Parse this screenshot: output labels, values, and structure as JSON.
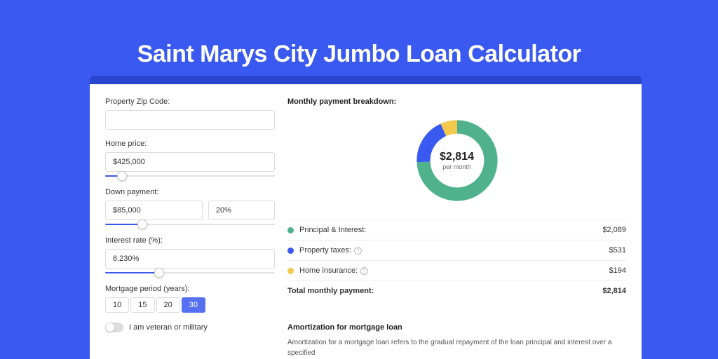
{
  "page": {
    "title": "Saint Marys City Jumbo Loan Calculator",
    "bg_color": "#3a59f0",
    "tabbar_color": "#2a46d0"
  },
  "form": {
    "zip": {
      "label": "Property Zip Code:",
      "value": ""
    },
    "price": {
      "label": "Home price:",
      "value": "$425,000",
      "slider_pct": 10
    },
    "down": {
      "label": "Down payment:",
      "value": "$85,000",
      "pct": "20%",
      "slider_pct": 22
    },
    "rate": {
      "label": "Interest rate (%):",
      "value": "6.230%",
      "slider_pct": 32
    },
    "term": {
      "label": "Mortgage period (years):",
      "options": [
        "10",
        "15",
        "20",
        "30"
      ],
      "selected": "30"
    },
    "veteran": {
      "label": "I am veteran or military",
      "checked": false
    }
  },
  "breakdown": {
    "title": "Monthly payment breakdown:",
    "center_amount": "$2,814",
    "center_sub": "per month",
    "donut": {
      "segments": [
        {
          "key": "pi",
          "value": 2089,
          "color": "#4fb28c"
        },
        {
          "key": "tax",
          "value": 531,
          "color": "#3a59f0"
        },
        {
          "key": "ins",
          "value": 194,
          "color": "#f2c94c"
        }
      ],
      "stroke_width": 16,
      "bg_color": "#ffffff"
    },
    "rows": [
      {
        "key": "pi",
        "label": "Principal & Interest:",
        "value": "$2,089",
        "color": "#4fb28c",
        "info": false
      },
      {
        "key": "tax",
        "label": "Property taxes:",
        "value": "$531",
        "color": "#3a59f0",
        "info": true
      },
      {
        "key": "ins",
        "label": "Home insurance:",
        "value": "$194",
        "color": "#f2c94c",
        "info": true
      }
    ],
    "total": {
      "label": "Total monthly payment:",
      "value": "$2,814"
    }
  },
  "amort": {
    "title": "Amortization for mortgage loan",
    "text": "Amortization for a mortgage loan refers to the gradual repayment of the loan principal and interest over a specified"
  }
}
